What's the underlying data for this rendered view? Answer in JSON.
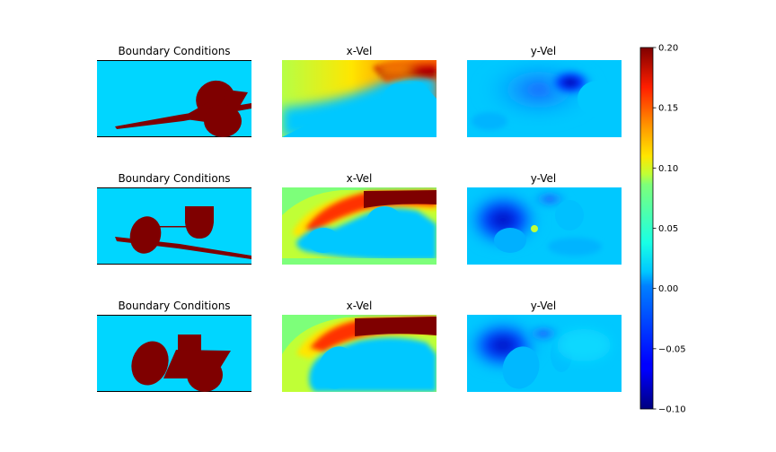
{
  "chart_data": {
    "type": "heatmap",
    "layout": "3 rows x 3 columns of image panels with shared colorbar",
    "rows": [
      {
        "titles": [
          "Boundary Conditions",
          "x-Vel",
          "y-Vel"
        ]
      },
      {
        "titles": [
          "Boundary Conditions",
          "x-Vel",
          "y-Vel"
        ]
      },
      {
        "titles": [
          "Boundary Conditions",
          "x-Vel",
          "y-Vel"
        ]
      }
    ],
    "colorbar": {
      "colormap": "jet",
      "min": -0.1,
      "max": 0.2,
      "ticks": [
        -0.1,
        -0.05,
        0.0,
        0.05,
        0.1,
        0.15,
        0.2
      ],
      "tick_labels": [
        "−0.10",
        "−0.05",
        "0.00",
        "0.05",
        "0.10",
        "0.15",
        "0.20"
      ]
    },
    "axes_visible": false,
    "colors": {
      "fluid": "#00d6ff",
      "obstacle": "#7f0000",
      "wall_line": "#000000"
    }
  }
}
